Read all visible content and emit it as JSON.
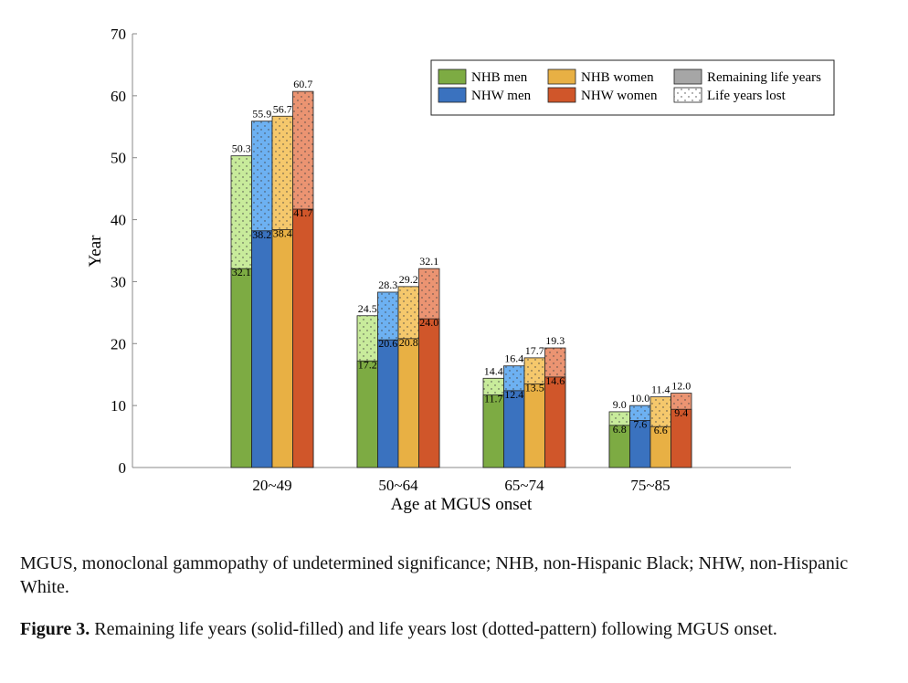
{
  "chart_data": {
    "type": "bar",
    "y_label": "Year",
    "x_label": "Age at MGUS onset",
    "categories": [
      "20~49",
      "50~64",
      "65~74",
      "75~85"
    ],
    "ylim": [
      0,
      70
    ],
    "yticks": [
      0,
      10,
      20,
      30,
      40,
      50,
      60,
      70
    ],
    "series": [
      {
        "name": "NHB men",
        "color": "#7dab43",
        "light_color": "#c8eb9b",
        "values": [
          32.1,
          17.2,
          11.7,
          6.8
        ],
        "value_labels": [
          "32.1",
          "17.2",
          "11.7",
          "6.8"
        ],
        "total_values": [
          50.3,
          24.5,
          14.4,
          9.0
        ],
        "total_value_labels": [
          "50.3",
          "24.5",
          "14.4",
          "9.0"
        ]
      },
      {
        "name": "NHW men",
        "color": "#3a72bf",
        "light_color": "#6db1f2",
        "values": [
          38.2,
          20.6,
          12.4,
          7.6
        ],
        "value_labels": [
          "38.2",
          "20.6",
          "12.4",
          "7.6"
        ],
        "total_values": [
          55.9,
          28.3,
          16.4,
          10.0
        ],
        "total_value_labels": [
          "55.9",
          "28.3",
          "16.4",
          "10.0"
        ]
      },
      {
        "name": "NHB women",
        "color": "#e8b044",
        "light_color": "#f5c86c",
        "values": [
          38.4,
          20.8,
          13.5,
          6.6
        ],
        "value_labels": [
          "38.4",
          "20.8",
          "13.5",
          "6.6"
        ],
        "total_values": [
          56.7,
          29.2,
          17.7,
          11.4
        ],
        "total_value_labels": [
          "56.7",
          "29.2",
          "17.7",
          "11.4"
        ]
      },
      {
        "name": "NHW women",
        "color": "#d0562a",
        "light_color": "#eb9472",
        "values": [
          41.7,
          24.0,
          14.6,
          9.4
        ],
        "value_labels": [
          "41.7",
          "24.0",
          "14.6",
          "9.4"
        ],
        "total_values": [
          60.7,
          32.1,
          19.3,
          12.0
        ],
        "total_value_labels": [
          "60.7",
          "32.1",
          "19.3",
          "12.0"
        ]
      }
    ],
    "legend_styles": [
      {
        "name": "Remaining life years",
        "color": "#a6a6a6"
      },
      {
        "name": "Life years lost",
        "color": "#ffffff"
      }
    ]
  },
  "footnote": "MGUS, monoclonal gammopathy of undetermined significance; NHB, non-Hispanic Black; NHW, non-Hispanic White.",
  "caption": {
    "label": "Figure 3.",
    "text": "Remaining life years (solid-filled) and life years lost (dotted-pattern) following MGUS onset."
  }
}
